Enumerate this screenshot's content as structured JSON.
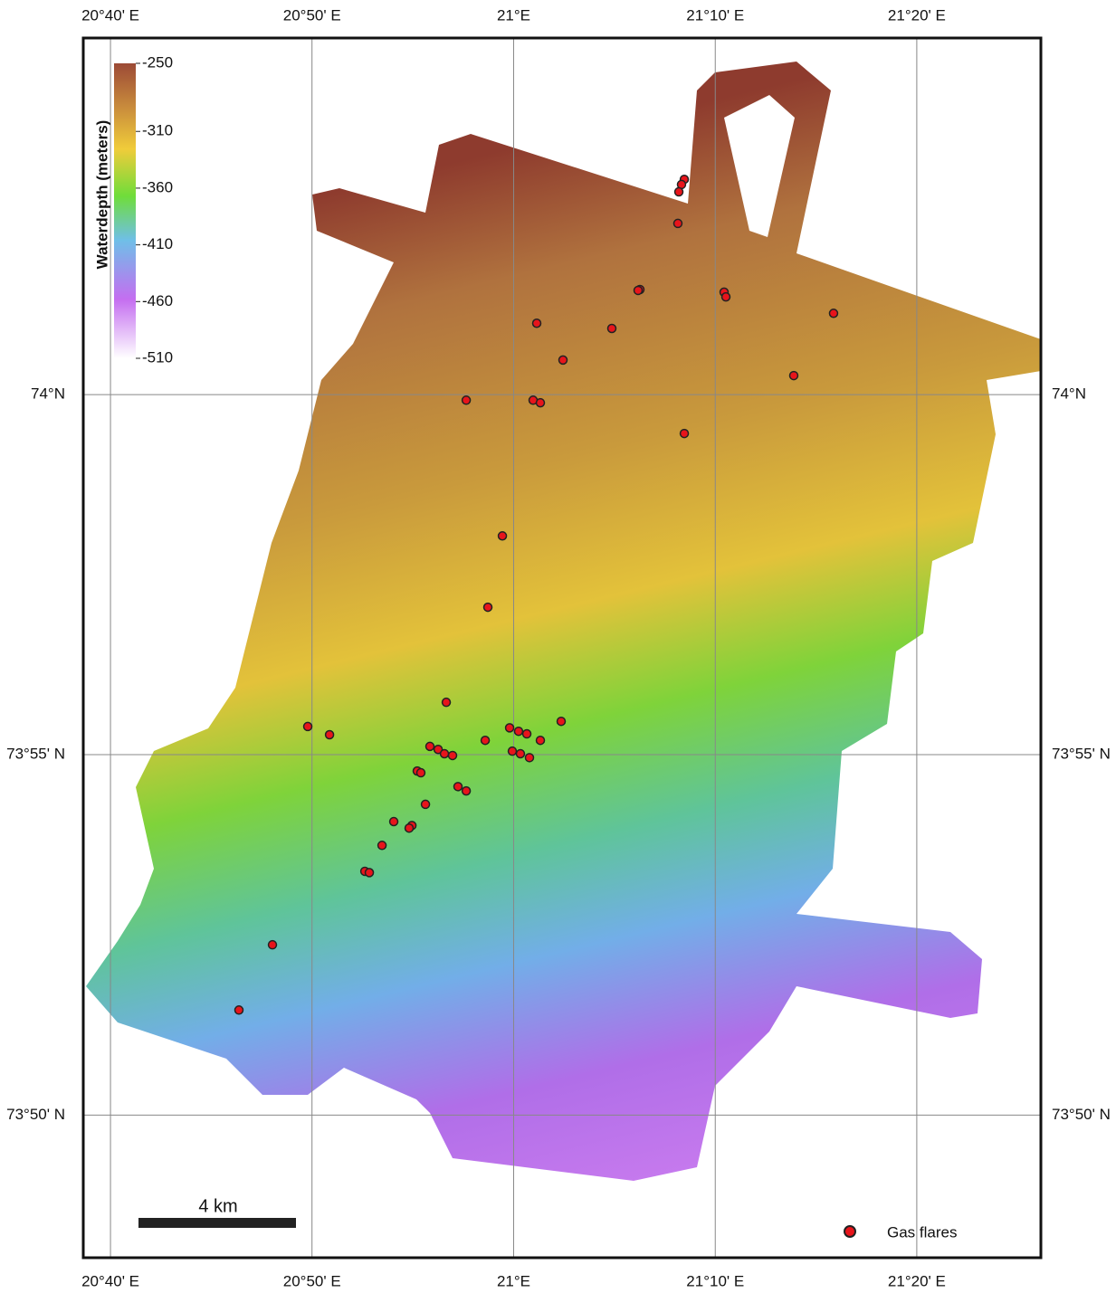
{
  "map": {
    "graticule": {
      "xlim": [
        20.6442,
        21.4359
      ],
      "ylim": [
        73.8003,
        74.0825
      ],
      "lon_ticks": [
        {
          "value": 20.6667,
          "label": "20°40' E"
        },
        {
          "value": 20.8333,
          "label": "20°50' E"
        },
        {
          "value": 21,
          "label": "21°E"
        },
        {
          "value": 21.1667,
          "label": "21°10' E"
        },
        {
          "value": 21.3333,
          "label": "21°20' E"
        }
      ],
      "lat_ticks": [
        {
          "value": 74,
          "label": "74°N"
        },
        {
          "value": 73.9167,
          "label": "73°55' N"
        },
        {
          "value": 73.8333,
          "label": "73°50' N"
        }
      ]
    },
    "colorbar": {
      "title": "Waterdepth (meters)",
      "lim": [
        -510,
        -250
      ],
      "ticks": [
        -250,
        -310,
        -360,
        -410,
        -460,
        -510
      ]
    },
    "scale_bar": {
      "label": "4 km"
    },
    "legend": {
      "label": "Gas flares"
    },
    "gas_flares": [
      {
        "lon": 21.1411,
        "lat": 74.0498
      },
      {
        "lon": 21.1388,
        "lat": 74.0486
      },
      {
        "lon": 21.1366,
        "lat": 74.0469
      },
      {
        "lon": 21.1358,
        "lat": 74.0396
      },
      {
        "lon": 21.1044,
        "lat": 74.0243
      },
      {
        "lon": 21.1029,
        "lat": 74.0241
      },
      {
        "lon": 21.174,
        "lat": 74.0237
      },
      {
        "lon": 21.1755,
        "lat": 74.0226
      },
      {
        "lon": 21.2645,
        "lat": 74.0188
      },
      {
        "lon": 21.0191,
        "lat": 74.0165
      },
      {
        "lon": 21.0812,
        "lat": 74.0153
      },
      {
        "lon": 21.0408,
        "lat": 74.008
      },
      {
        "lon": 21.2316,
        "lat": 74.0044
      },
      {
        "lon": 20.9608,
        "lat": 73.9987
      },
      {
        "lon": 21.0161,
        "lat": 73.9987
      },
      {
        "lon": 21.0221,
        "lat": 73.9981
      },
      {
        "lon": 21.1411,
        "lat": 73.991
      },
      {
        "lon": 20.9907,
        "lat": 73.9673
      },
      {
        "lon": 20.9787,
        "lat": 73.9508
      },
      {
        "lon": 20.9443,
        "lat": 73.9288
      },
      {
        "lon": 20.8298,
        "lat": 73.9232
      },
      {
        "lon": 20.8478,
        "lat": 73.9213
      },
      {
        "lon": 20.9967,
        "lat": 73.9229
      },
      {
        "lon": 21.0041,
        "lat": 73.9221
      },
      {
        "lon": 21.0109,
        "lat": 73.9215
      },
      {
        "lon": 21.0393,
        "lat": 73.9244
      },
      {
        "lon": 21.0221,
        "lat": 73.92
      },
      {
        "lon": 20.9765,
        "lat": 73.92
      },
      {
        "lon": 20.9308,
        "lat": 73.9186
      },
      {
        "lon": 20.9376,
        "lat": 73.9179
      },
      {
        "lon": 20.9428,
        "lat": 73.9169
      },
      {
        "lon": 20.9495,
        "lat": 73.9165
      },
      {
        "lon": 20.9989,
        "lat": 73.9175
      },
      {
        "lon": 21.0056,
        "lat": 73.9169
      },
      {
        "lon": 21.0131,
        "lat": 73.916
      },
      {
        "lon": 20.9203,
        "lat": 73.9129
      },
      {
        "lon": 20.9233,
        "lat": 73.9125
      },
      {
        "lon": 20.954,
        "lat": 73.9093
      },
      {
        "lon": 20.9608,
        "lat": 73.9083
      },
      {
        "lon": 20.9271,
        "lat": 73.9052
      },
      {
        "lon": 20.9009,
        "lat": 73.9012
      },
      {
        "lon": 20.9159,
        "lat": 73.9003
      },
      {
        "lon": 20.9136,
        "lat": 73.8997
      },
      {
        "lon": 20.8912,
        "lat": 73.8957
      },
      {
        "lon": 20.877,
        "lat": 73.8897
      },
      {
        "lon": 20.8807,
        "lat": 73.8894
      },
      {
        "lon": 20.8006,
        "lat": 73.8727
      },
      {
        "lon": 20.7729,
        "lat": 73.8576
      }
    ]
  }
}
